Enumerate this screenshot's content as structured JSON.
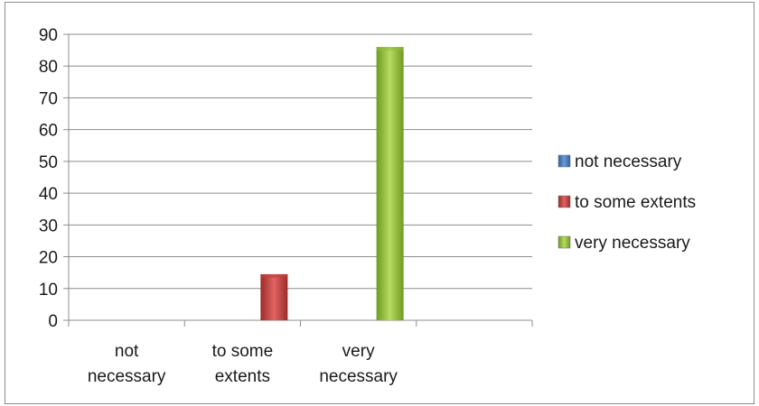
{
  "chart_data": {
    "type": "bar",
    "categories": [
      "not necessary",
      "to some extents",
      "very necessary"
    ],
    "category_lines": [
      [
        "not",
        "necessary"
      ],
      [
        "to some",
        "extents"
      ],
      [
        "very",
        "necessary"
      ]
    ],
    "values": [
      0,
      14.5,
      86
    ],
    "ylim": [
      0,
      90
    ],
    "yticks": [
      "0",
      "10",
      "20",
      "30",
      "40",
      "50",
      "60",
      "70",
      "80",
      "90"
    ],
    "grid": true,
    "legend": {
      "placement": "right",
      "entries": [
        "not necessary",
        "to some extents",
        "very necessary"
      ]
    },
    "colors": [
      "#4a7fc1",
      "#c0403e",
      "#93bb3e"
    ],
    "title": "",
    "xlabel": "",
    "ylabel": ""
  }
}
